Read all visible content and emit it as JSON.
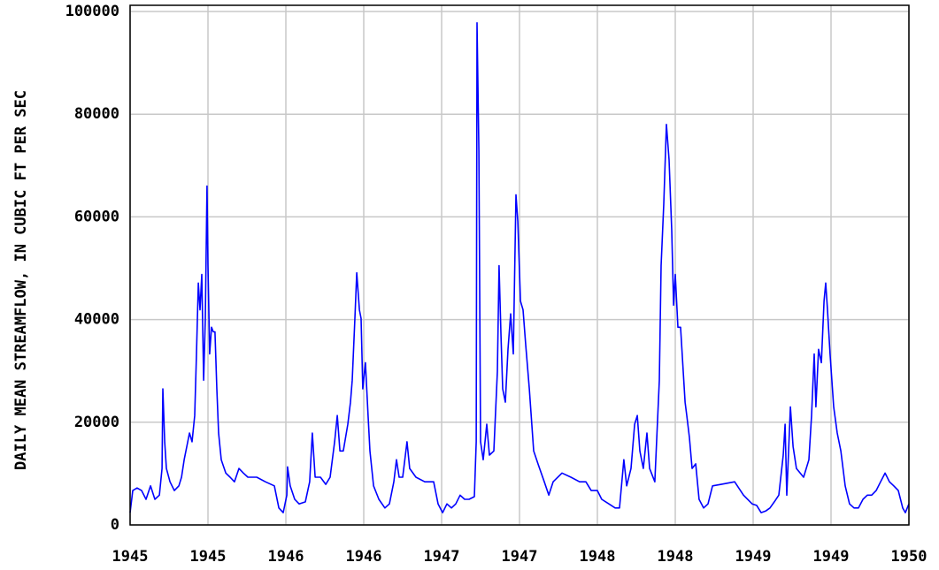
{
  "chart_data": {
    "type": "line",
    "ylabel": "DAILY MEAN STREAMFLOW, IN CUBIC FT PER SEC",
    "xlim": [
      1945,
      1950
    ],
    "xticks": [
      {
        "value": 1945,
        "label": "1945"
      },
      {
        "value": 1945.5,
        "label": "1945"
      },
      {
        "value": 1946,
        "label": "1946"
      },
      {
        "value": 1946.5,
        "label": "1946"
      },
      {
        "value": 1947,
        "label": "1947"
      },
      {
        "value": 1947.5,
        "label": "1947"
      },
      {
        "value": 1948,
        "label": "1948"
      },
      {
        "value": 1948.5,
        "label": "1948"
      },
      {
        "value": 1949,
        "label": "1949"
      },
      {
        "value": 1949.5,
        "label": "1949"
      },
      {
        "value": 1950,
        "label": "1950"
      }
    ],
    "ylim": [
      0,
      100000
    ],
    "yticks": [
      0,
      20000,
      40000,
      60000,
      80000,
      100000
    ],
    "grid": true,
    "x": [
      1945.0,
      1945.017,
      1945.045,
      1945.074,
      1945.102,
      1945.131,
      1945.159,
      1945.188,
      1945.205,
      1945.21,
      1945.222,
      1945.233,
      1945.256,
      1945.284,
      1945.313,
      1945.33,
      1945.347,
      1945.364,
      1945.381,
      1945.398,
      1945.415,
      1945.426,
      1945.438,
      1945.449,
      1945.46,
      1945.472,
      1945.483,
      1945.494,
      1945.5,
      1945.511,
      1945.523,
      1945.534,
      1945.545,
      1945.557,
      1945.568,
      1945.585,
      1945.614,
      1945.642,
      1945.67,
      1945.699,
      1945.727,
      1945.756,
      1945.813,
      1945.869,
      1945.926,
      1945.955,
      1945.983,
      1946.006,
      1946.011,
      1946.028,
      1946.057,
      1946.085,
      1946.125,
      1946.153,
      1946.17,
      1946.188,
      1946.222,
      1946.256,
      1946.284,
      1946.313,
      1946.33,
      1946.347,
      1946.369,
      1946.398,
      1946.415,
      1946.426,
      1946.443,
      1946.455,
      1946.472,
      1946.483,
      1946.494,
      1946.511,
      1946.528,
      1946.54,
      1946.563,
      1946.597,
      1946.636,
      1946.665,
      1946.693,
      1946.71,
      1946.727,
      1946.75,
      1946.778,
      1946.795,
      1946.835,
      1946.892,
      1946.949,
      1946.977,
      1947.006,
      1947.034,
      1947.063,
      1947.091,
      1947.119,
      1947.148,
      1947.176,
      1947.21,
      1947.222,
      1947.227,
      1947.239,
      1947.25,
      1947.267,
      1947.29,
      1947.307,
      1947.335,
      1947.358,
      1947.369,
      1947.381,
      1947.392,
      1947.409,
      1947.426,
      1947.443,
      1947.46,
      1947.477,
      1947.489,
      1947.506,
      1947.523,
      1947.54,
      1947.563,
      1947.591,
      1947.619,
      1947.659,
      1947.688,
      1947.716,
      1947.773,
      1947.83,
      1947.886,
      1947.926,
      1947.96,
      1948.0,
      1948.028,
      1948.074,
      1948.114,
      1948.142,
      1948.17,
      1948.188,
      1948.216,
      1948.239,
      1948.256,
      1948.273,
      1948.295,
      1948.318,
      1948.335,
      1948.369,
      1948.398,
      1948.409,
      1948.426,
      1948.443,
      1948.46,
      1948.477,
      1948.489,
      1948.5,
      1948.517,
      1948.534,
      1948.551,
      1948.563,
      1948.574,
      1948.591,
      1948.608,
      1948.631,
      1948.653,
      1948.682,
      1948.71,
      1948.739,
      1948.795,
      1948.881,
      1948.938,
      1948.994,
      1949.023,
      1949.051,
      1949.08,
      1949.108,
      1949.136,
      1949.165,
      1949.193,
      1949.205,
      1949.216,
      1949.239,
      1949.256,
      1949.278,
      1949.324,
      1949.358,
      1949.375,
      1949.392,
      1949.403,
      1949.42,
      1949.438,
      1949.455,
      1949.466,
      1949.477,
      1949.494,
      1949.517,
      1949.54,
      1949.563,
      1949.591,
      1949.619,
      1949.648,
      1949.676,
      1949.705,
      1949.733,
      1949.761,
      1949.79,
      1949.818,
      1949.847,
      1949.875,
      1949.903,
      1949.932,
      1949.96,
      1949.977,
      1950.0
    ],
    "series": [
      {
        "color": "#0000ff",
        "values": [
          2400,
          6700,
          7200,
          6700,
          5000,
          7600,
          5000,
          5800,
          11000,
          26500,
          16200,
          11000,
          8400,
          6700,
          7600,
          9300,
          12700,
          15300,
          17900,
          16200,
          21300,
          33300,
          47100,
          41900,
          48800,
          28200,
          40200,
          66000,
          50500,
          33300,
          38500,
          37600,
          37600,
          26500,
          17900,
          12700,
          10100,
          9300,
          8400,
          11000,
          10100,
          9300,
          9300,
          8400,
          7600,
          3300,
          2400,
          5800,
          11300,
          7600,
          5000,
          4100,
          4500,
          8400,
          17900,
          9300,
          9300,
          7900,
          9300,
          16200,
          21300,
          14400,
          14400,
          19600,
          23900,
          28200,
          40200,
          49100,
          41900,
          40200,
          26500,
          31600,
          21300,
          14400,
          7600,
          5000,
          3300,
          4100,
          8400,
          12700,
          9300,
          9300,
          16200,
          11000,
          9300,
          8400,
          8400,
          4100,
          2400,
          4100,
          3300,
          4100,
          5800,
          5000,
          5000,
          5500,
          16200,
          97800,
          72900,
          16200,
          12700,
          19600,
          13600,
          14400,
          29900,
          50500,
          36800,
          26500,
          23900,
          34200,
          41100,
          33300,
          64300,
          59100,
          43600,
          41900,
          35100,
          26500,
          14400,
          11900,
          8400,
          5800,
          8400,
          10100,
          9300,
          8400,
          8400,
          6700,
          6700,
          5000,
          4100,
          3300,
          3300,
          12700,
          7600,
          11000,
          19600,
          21300,
          14400,
          11000,
          17900,
          11000,
          8400,
          28200,
          50500,
          62500,
          78000,
          71100,
          57400,
          42800,
          48800,
          38500,
          38500,
          29900,
          23900,
          21300,
          17000,
          11000,
          11900,
          5000,
          3300,
          4100,
          7600,
          7900,
          8400,
          5800,
          4100,
          3800,
          2400,
          2700,
          3300,
          4500,
          5800,
          13600,
          19600,
          5800,
          23000,
          15300,
          11000,
          9300,
          12700,
          21300,
          33300,
          23000,
          34200,
          31600,
          43600,
          47100,
          41900,
          33300,
          23000,
          17900,
          14400,
          7600,
          4100,
          3300,
          3300,
          5000,
          5800,
          5800,
          6700,
          8400,
          10100,
          8400,
          7600,
          6700,
          3300,
          2400,
          4100
        ]
      }
    ]
  }
}
